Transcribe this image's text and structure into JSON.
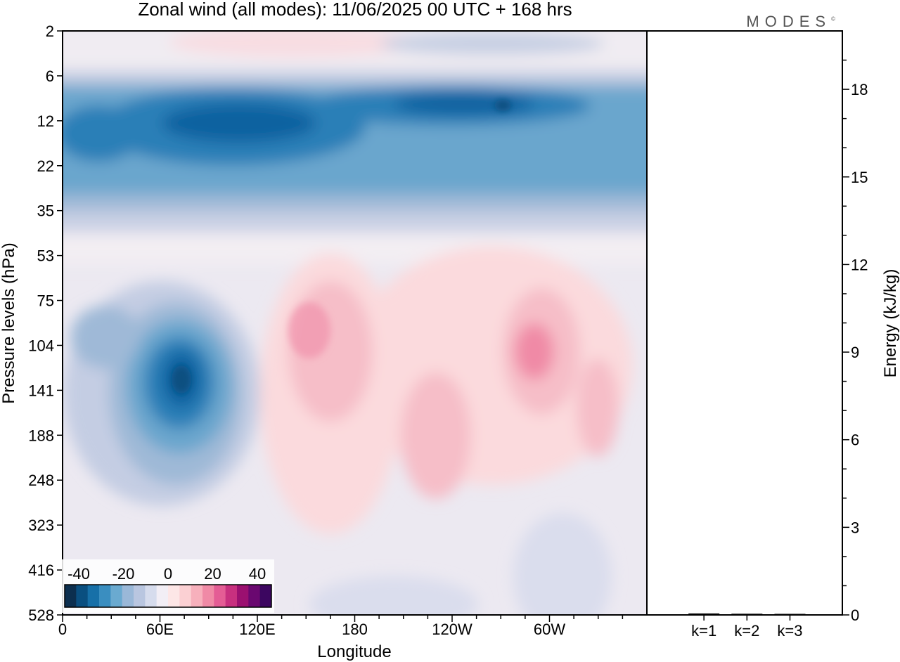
{
  "chart_data": {
    "type": "heatmap",
    "title": "Zonal wind (all modes):  11/06/2025  00 UTC  + 168 hrs",
    "xlabel": "Longitude",
    "ylabel": "Pressure levels (hPa)",
    "y2label": "Energy (kJ/kg)",
    "x_ticks": [
      "0",
      "60E",
      "120E",
      "180",
      "120W",
      "60W"
    ],
    "x_tick_degrees": [
      0,
      60,
      120,
      180,
      240,
      300
    ],
    "xlim": [
      0,
      360
    ],
    "y_levels": [
      "2",
      "6",
      "12",
      "22",
      "35",
      "53",
      "75",
      "104",
      "141",
      "188",
      "248",
      "323",
      "416",
      "528"
    ],
    "y2_ticks": [
      "0",
      "3",
      "6",
      "9",
      "12",
      "15",
      "18"
    ],
    "y2lim": [
      0,
      20
    ],
    "colorbar": {
      "ticks": [
        "-40",
        "-20",
        "0",
        "20",
        "40"
      ],
      "colors": [
        "#0c2f4f",
        "#0a4f80",
        "#1770a8",
        "#3a8ec0",
        "#6aaad0",
        "#9ab8d8",
        "#b9c6e0",
        "#d6dced",
        "#f2eef5",
        "#fde6e6",
        "#fbd0d3",
        "#f7b0bc",
        "#f08aa6",
        "#e45d95",
        "#c8307f",
        "#9b1070",
        "#6a0870",
        "#3c0660"
      ]
    },
    "energy_bars": {
      "categories": [
        "k=1",
        "k=2",
        "k=3"
      ],
      "values": [
        0.05,
        0.04,
        0.0
      ]
    },
    "field_features": [
      {
        "desc": "stratospheric easterly jet",
        "lon_range": [
          0,
          360
        ],
        "levels": [
          "6",
          "35"
        ],
        "value": -25
      },
      {
        "desc": "easterly core",
        "lon_range": [
          75,
          155
        ],
        "levels": [
          "12",
          "22"
        ],
        "value": -35
      },
      {
        "desc": "easterly core",
        "lon_range": [
          200,
          290
        ],
        "levels": [
          "8",
          "12"
        ],
        "value": -35
      },
      {
        "desc": "tropical easterly jet",
        "lon_range": [
          30,
          105
        ],
        "levels": [
          "75",
          "248"
        ],
        "value": -40
      },
      {
        "desc": "westerly maximum",
        "lon_range": [
          140,
          210
        ],
        "levels": [
          "75",
          "188"
        ],
        "value": 15
      },
      {
        "desc": "westerly maximum",
        "lon_range": [
          270,
          310
        ],
        "levels": [
          "75",
          "141"
        ],
        "value": 20
      },
      {
        "desc": "westerly maximum",
        "lon_range": [
          215,
          260
        ],
        "levels": [
          "141",
          "248"
        ],
        "value": 12
      }
    ]
  },
  "branding": {
    "logo_text": "MODES",
    "logo_mark": "©"
  }
}
